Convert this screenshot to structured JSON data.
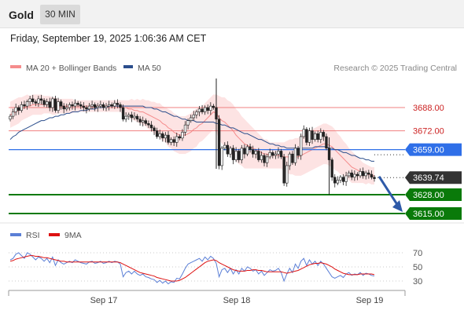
{
  "header": {
    "title": "Gold",
    "timeframe": "30 MIN"
  },
  "timestamp": "Friday, September 19, 2025 1:06:36 AM CET",
  "legend": {
    "bollinger_label": "MA 20 + Bollinger Bands",
    "ma50_label": "MA 50",
    "copyright": "Research © 2025 Trading Central"
  },
  "colors": {
    "bollinger": "#f58c8c",
    "band_fill": "#fde3e3",
    "ma50": "#2b4e8c",
    "resistance": "#f08080",
    "pivot": "#2f6fe8",
    "support": "#0a7a0a",
    "price_tag": "#333333",
    "arrow": "#2e5aa8",
    "rsi": "#5b7fd6",
    "rsi_ma": "#dd1111",
    "candle_up": "#ffffff",
    "candle_down": "#222222"
  },
  "chart_data": [
    {
      "type": "candlestick",
      "title": "",
      "xlabel": "",
      "ylabel": "",
      "ylim": [
        3606,
        3706
      ],
      "x_ticks": [
        "Sep 17",
        "Sep 18",
        "Sep 19"
      ],
      "levels": [
        {
          "name": "resistance-2",
          "value": 3688.0,
          "label": "3688.00",
          "kind": "resistance"
        },
        {
          "name": "resistance-1",
          "value": 3672.0,
          "label": "3672.00",
          "kind": "resistance"
        },
        {
          "name": "pivot",
          "value": 3659.0,
          "label": "3659.00",
          "kind": "pivot"
        },
        {
          "name": "last-price",
          "value": 3639.74,
          "label": "3639.74",
          "kind": "price"
        },
        {
          "name": "support-1",
          "value": 3628.0,
          "label": "3628.00",
          "kind": "support"
        },
        {
          "name": "support-2",
          "value": 3615.0,
          "label": "3615.00",
          "kind": "support"
        }
      ],
      "series_close": [
        3682,
        3685,
        3688,
        3686,
        3690,
        3689,
        3692,
        3694,
        3692,
        3691,
        3694,
        3693,
        3690,
        3692,
        3688,
        3694,
        3686,
        3692,
        3689,
        3687,
        3688,
        3690,
        3689,
        3691,
        3690,
        3689,
        3688,
        3687,
        3689,
        3690,
        3688,
        3689,
        3690,
        3688,
        3689,
        3690,
        3689,
        3691,
        3690,
        3688,
        3680,
        3682,
        3683,
        3681,
        3682,
        3680,
        3678,
        3679,
        3677,
        3676,
        3674,
        3672,
        3668,
        3670,
        3667,
        3669,
        3664,
        3666,
        3664,
        3668,
        3667,
        3671,
        3676,
        3679,
        3681,
        3683,
        3685,
        3687,
        3685,
        3688,
        3686,
        3689,
        3688,
        3680,
        3648,
        3660,
        3662,
        3656,
        3660,
        3652,
        3658,
        3652,
        3660,
        3656,
        3661,
        3659,
        3656,
        3658,
        3652,
        3655,
        3650,
        3654,
        3657,
        3655,
        3656,
        3658,
        3654,
        3636,
        3648,
        3656,
        3650,
        3660,
        3655,
        3668,
        3673,
        3664,
        3672,
        3666,
        3670,
        3666,
        3671,
        3668,
        3660,
        3652,
        3640,
        3636,
        3638,
        3640,
        3637,
        3641,
        3643,
        3640,
        3642,
        3641,
        3644,
        3641,
        3643,
        3642,
        3640,
        3639
      ],
      "bollinger": {
        "middle": [
          3683,
          3684,
          3685,
          3686,
          3687,
          3688,
          3689,
          3689,
          3690,
          3690,
          3690,
          3690,
          3690,
          3690,
          3690,
          3689,
          3689,
          3689,
          3689,
          3689,
          3689,
          3689,
          3689,
          3689,
          3689,
          3689,
          3689,
          3689,
          3689,
          3689,
          3689,
          3689,
          3689,
          3689,
          3689,
          3689,
          3689,
          3689,
          3689,
          3689,
          3688,
          3688,
          3687,
          3687,
          3686,
          3686,
          3685,
          3685,
          3684,
          3683,
          3682,
          3681,
          3680,
          3679,
          3677,
          3676,
          3674,
          3673,
          3671,
          3670,
          3669,
          3669,
          3669,
          3670,
          3671,
          3673,
          3674,
          3676,
          3677,
          3679,
          3681,
          3683,
          3685,
          3684,
          3681,
          3679,
          3678,
          3676,
          3674,
          3672,
          3669,
          3667,
          3665,
          3663,
          3662,
          3661,
          3660,
          3659,
          3658,
          3657,
          3656,
          3656,
          3655,
          3655,
          3655,
          3655,
          3655,
          3654,
          3654,
          3654,
          3654,
          3654,
          3654,
          3655,
          3656,
          3657,
          3658,
          3659,
          3660,
          3661,
          3662,
          3663,
          3663,
          3662,
          3661,
          3659,
          3657,
          3655,
          3653,
          3651,
          3649,
          3647,
          3646,
          3645,
          3644,
          3643,
          3642,
          3642,
          3641,
          3641
        ],
        "width": [
          9,
          9,
          9,
          9,
          8,
          8,
          8,
          7,
          7,
          7,
          7,
          7,
          6,
          6,
          6,
          6,
          6,
          5,
          5,
          5,
          5,
          5,
          5,
          4,
          4,
          4,
          4,
          4,
          4,
          4,
          4,
          4,
          4,
          4,
          4,
          4,
          4,
          4,
          4,
          4,
          5,
          5,
          6,
          7,
          7,
          8,
          8,
          9,
          9,
          10,
          10,
          11,
          11,
          12,
          12,
          12,
          13,
          13,
          13,
          13,
          13,
          13,
          13,
          13,
          13,
          13,
          13,
          12,
          12,
          12,
          12,
          12,
          12,
          13,
          15,
          16,
          17,
          17,
          18,
          18,
          18,
          18,
          17,
          17,
          16,
          15,
          14,
          13,
          12,
          11,
          10,
          10,
          9,
          9,
          9,
          9,
          9,
          10,
          11,
          12,
          12,
          13,
          13,
          14,
          14,
          14,
          14,
          14,
          14,
          14,
          14,
          14,
          14,
          14,
          14,
          14,
          13,
          13,
          12,
          12,
          11,
          11,
          10,
          9,
          8,
          7,
          7,
          6,
          6,
          6
        ]
      },
      "ma50": [
        3666,
        3668,
        3669,
        3671,
        3672,
        3673,
        3674,
        3675,
        3676,
        3677,
        3678,
        3679,
        3679,
        3680,
        3681,
        3681,
        3682,
        3682,
        3683,
        3683,
        3684,
        3684,
        3685,
        3685,
        3685,
        3686,
        3686,
        3686,
        3687,
        3687,
        3687,
        3688,
        3688,
        3688,
        3688,
        3689,
        3689,
        3689,
        3689,
        3689,
        3689,
        3689,
        3689,
        3689,
        3689,
        3689,
        3689,
        3689,
        3688,
        3688,
        3688,
        3687,
        3687,
        3686,
        3685,
        3685,
        3684,
        3683,
        3682,
        3682,
        3681,
        3680,
        3680,
        3679,
        3679,
        3679,
        3678,
        3678,
        3678,
        3678,
        3678,
        3678,
        3678,
        3677,
        3677,
        3676,
        3676,
        3675,
        3674,
        3674,
        3673,
        3672,
        3671,
        3670,
        3670,
        3669,
        3668,
        3667,
        3666,
        3666,
        3665,
        3664,
        3663,
        3663,
        3662,
        3662,
        3661,
        3661,
        3660,
        3660,
        3660,
        3660,
        3660,
        3660,
        3660,
        3660,
        3660,
        3660,
        3661,
        3661,
        3661,
        3661,
        3661,
        3660,
        3660,
        3659,
        3659,
        3658,
        3657,
        3657,
        3656,
        3655,
        3655,
        3654,
        3653,
        3653,
        3652,
        3652,
        3651,
        3651
      ]
    },
    {
      "type": "line",
      "title": "",
      "xlabel": "",
      "ylabel": "",
      "ylim": [
        20,
        80
      ],
      "y_ticks": [
        30,
        50,
        70
      ],
      "x_ticks": [
        "Sep 17",
        "Sep 18",
        "Sep 19"
      ],
      "series": [
        {
          "name": "RSI",
          "values": [
            60,
            62,
            68,
            70,
            66,
            62,
            70,
            68,
            64,
            60,
            64,
            62,
            58,
            62,
            56,
            64,
            52,
            60,
            56,
            54,
            56,
            58,
            56,
            60,
            58,
            56,
            55,
            54,
            57,
            58,
            55,
            56,
            58,
            55,
            56,
            58,
            56,
            58,
            57,
            54,
            36,
            42,
            44,
            40,
            44,
            40,
            38,
            40,
            36,
            35,
            33,
            32,
            28,
            31,
            27,
            30,
            26,
            29,
            28,
            34,
            33,
            40,
            48,
            54,
            56,
            58,
            60,
            62,
            58,
            64,
            60,
            65,
            62,
            55,
            36,
            46,
            48,
            42,
            48,
            40,
            46,
            40,
            48,
            44,
            50,
            48,
            44,
            46,
            40,
            44,
            38,
            42,
            46,
            44,
            45,
            48,
            42,
            30,
            40,
            48,
            42,
            54,
            48,
            58,
            62,
            52,
            60,
            54,
            58,
            52,
            58,
            54,
            48,
            42,
            36,
            34,
            36,
            38,
            35,
            40,
            42,
            38,
            40,
            39,
            42,
            38,
            41,
            40,
            38,
            37
          ]
        },
        {
          "name": "9MA",
          "values": [
            58,
            59,
            61,
            62,
            63,
            64,
            65,
            66,
            66,
            65,
            65,
            64,
            63,
            63,
            62,
            61,
            60,
            59,
            58,
            58,
            57,
            57,
            57,
            57,
            57,
            57,
            57,
            57,
            57,
            57,
            57,
            57,
            57,
            57,
            57,
            57,
            57,
            57,
            57,
            56,
            54,
            52,
            50,
            48,
            46,
            44,
            42,
            41,
            40,
            39,
            38,
            37,
            35,
            34,
            33,
            32,
            31,
            30,
            30,
            30,
            31,
            33,
            35,
            38,
            41,
            44,
            47,
            50,
            53,
            56,
            58,
            59,
            60,
            59,
            56,
            54,
            52,
            50,
            48,
            46,
            45,
            44,
            44,
            44,
            45,
            45,
            46,
            46,
            45,
            45,
            44,
            43,
            43,
            43,
            43,
            43,
            43,
            42,
            41,
            42,
            43,
            44,
            45,
            47,
            49,
            51,
            53,
            54,
            55,
            55,
            56,
            55,
            54,
            52,
            50,
            47,
            45,
            43,
            41,
            40,
            39,
            39,
            39,
            39,
            40,
            40,
            40,
            40,
            40,
            39
          ]
        }
      ]
    }
  ]
}
